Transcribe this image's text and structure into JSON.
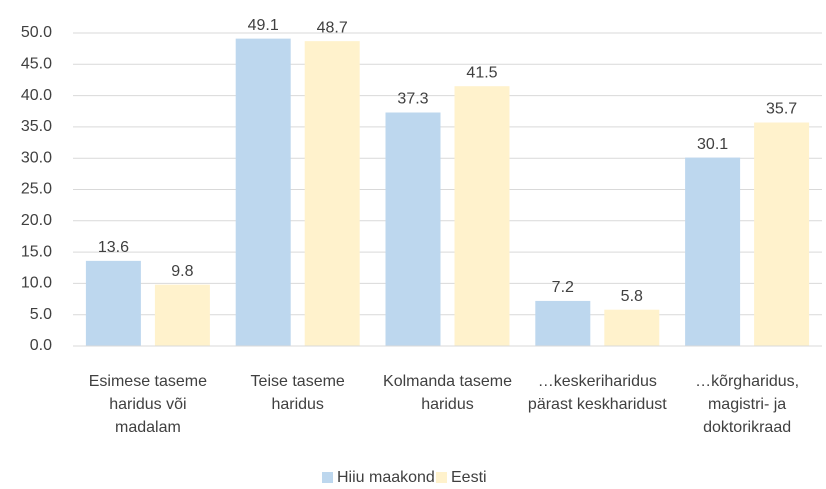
{
  "chart_data": {
    "type": "bar",
    "categories": [
      "Esimese taseme haridus või madalam",
      "Teise taseme haridus",
      "Kolmanda taseme haridus",
      "…keskeriharidus pärast keskharidust",
      "…kõrgharidus, magistri- ja doktorikraad"
    ],
    "series": [
      {
        "name": "Hiiu maakond",
        "color": "#bdd7ee",
        "values": [
          13.6,
          49.1,
          37.3,
          7.2,
          30.1
        ]
      },
      {
        "name": "Eesti",
        "color": "#fff2cc",
        "values": [
          9.8,
          48.7,
          41.5,
          5.8,
          35.7
        ]
      }
    ],
    "ylim": [
      0,
      50
    ],
    "yticks": [
      {
        "value": 0,
        "label": "0.0"
      },
      {
        "value": 5,
        "label": "5.0"
      },
      {
        "value": 10,
        "label": "10.0"
      },
      {
        "value": 15,
        "label": "15.0"
      },
      {
        "value": 20,
        "label": "20.0"
      },
      {
        "value": 25,
        "label": "25.0"
      },
      {
        "value": 30,
        "label": "30.0"
      },
      {
        "value": 35,
        "label": "35.0"
      },
      {
        "value": 40,
        "label": "40.0"
      },
      {
        "value": 45,
        "label": "45.0"
      },
      {
        "value": 50,
        "label": "50.0"
      }
    ],
    "grid": true,
    "legend": "bottom"
  }
}
